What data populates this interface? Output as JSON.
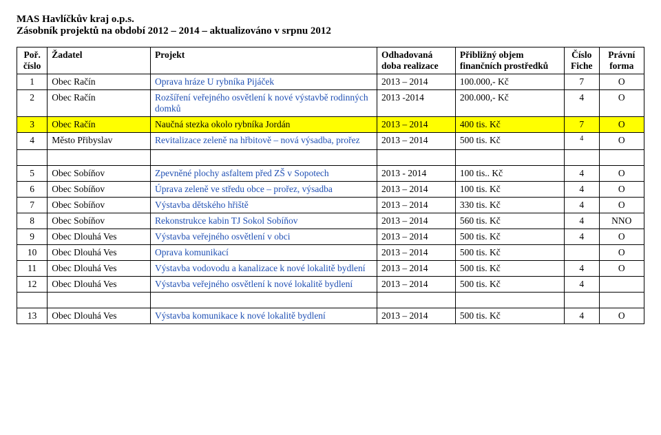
{
  "header": {
    "line1": "MAS Havlíčkův kraj o.p.s.",
    "line2": "Zásobník projektů na období 2012 – 2014 – aktualizováno v srpnu 2012"
  },
  "columns": {
    "por": "Poř. číslo",
    "zad": "Žadatel",
    "proj": "Projekt",
    "doba": "Odhadovaná doba realizace",
    "objem": "Přibližný objem finančních prostředků",
    "fiche": "Číslo Fiche",
    "forma": "Právní forma"
  },
  "rows_top": [
    {
      "n": "1",
      "zad": "Obec Račín",
      "proj": "Oprava hráze U rybníka Pijáček",
      "doba": "2013 – 2014",
      "objem": "100.000,- Kč",
      "fiche": "7",
      "forma": "O",
      "blue": true
    },
    {
      "n": "2",
      "zad": "Obec Račín",
      "proj": "Rozšíření veřejného osvětlení k nové výstavbě rodinných domků",
      "doba": "2013 -2014",
      "objem": "200.000,- Kč",
      "fiche": "4",
      "forma": "O",
      "blue": true
    },
    {
      "n": "3",
      "zad": "Obec Račín",
      "proj": "Naučná stezka okolo rybníka Jordán",
      "doba": "2013 – 2014",
      "objem": "400 tis. Kč",
      "fiche": "7",
      "forma": "O",
      "highlight": true
    },
    {
      "n": "4",
      "zad": "Město Přibyslav",
      "proj": "Revitalizace zeleně na hřbitově – nová výsadba, prořez",
      "doba": "2013 – 2014",
      "objem": "500 tis. Kč",
      "fiche": "4",
      "fiche_sup": true,
      "forma": "O",
      "blue": true
    }
  ],
  "rows_mid": [
    {
      "n": "5",
      "zad": "Obec Sobíňov",
      "proj": "Zpevněné plochy asfaltem před ZŠ v Sopotech",
      "doba": "2013 - 2014",
      "objem": "100 tis.. Kč",
      "fiche": "4",
      "forma": "O",
      "blue": true
    },
    {
      "n": "6",
      "zad": "Obec Sobíňov",
      "proj": "Úprava zeleně ve středu obce – prořez, výsadba",
      "doba": "2013 – 2014",
      "objem": "100 tis. Kč",
      "fiche": "4",
      "forma": "O",
      "blue": true
    },
    {
      "n": "7",
      "zad": "Obec Sobíňov",
      "proj": "Výstavba dětského hřiště",
      "doba": "2013 – 2014",
      "objem": "330 tis. Kč",
      "fiche": "4",
      "forma": "O",
      "blue": true
    },
    {
      "n": "8",
      "zad": "Obec Sobíňov",
      "proj": "Rekonstrukce kabin TJ Sokol Sobíňov",
      "doba": "2013 – 2014",
      "objem": "560 tis. Kč",
      "fiche": "4",
      "forma": "NNO",
      "blue": true
    },
    {
      "n": "9",
      "zad": "Obec Dlouhá Ves",
      "proj": "Výstavba veřejného osvětlení v obci",
      "doba": "2013 – 2014",
      "objem": "500 tis. Kč",
      "fiche": "4",
      "forma": "O",
      "blue": true
    },
    {
      "n": "10",
      "zad": "Obec Dlouhá Ves",
      "proj": "Oprava komunikací",
      "doba": "2013 – 2014",
      "objem": "500 tis. Kč",
      "fiche": "",
      "forma": "O",
      "blue": true
    },
    {
      "n": "11",
      "zad": "Obec Dlouhá Ves",
      "proj": "Výstavba vodovodu a kanalizace k nové lokalitě bydlení",
      "doba": "2013 – 2014",
      "objem": "500 tis. Kč",
      "fiche": "4",
      "forma": "O",
      "blue": true
    },
    {
      "n": "12",
      "zad": "Obec Dlouhá Ves",
      "proj": "Výstavba veřejného osvětlení k nové lokalitě bydlení",
      "doba": "2013 – 2014",
      "objem": "500 tis. Kč",
      "fiche": "4",
      "forma": "",
      "blue": true
    }
  ],
  "rows_bot": [
    {
      "n": "13",
      "zad": "Obec Dlouhá Ves",
      "proj": "Výstavba komunikace k nové lokalitě bydlení",
      "doba": "2013 – 2014",
      "objem": "500 tis. Kč",
      "fiche": "4",
      "forma": "O",
      "blue": true
    }
  ]
}
